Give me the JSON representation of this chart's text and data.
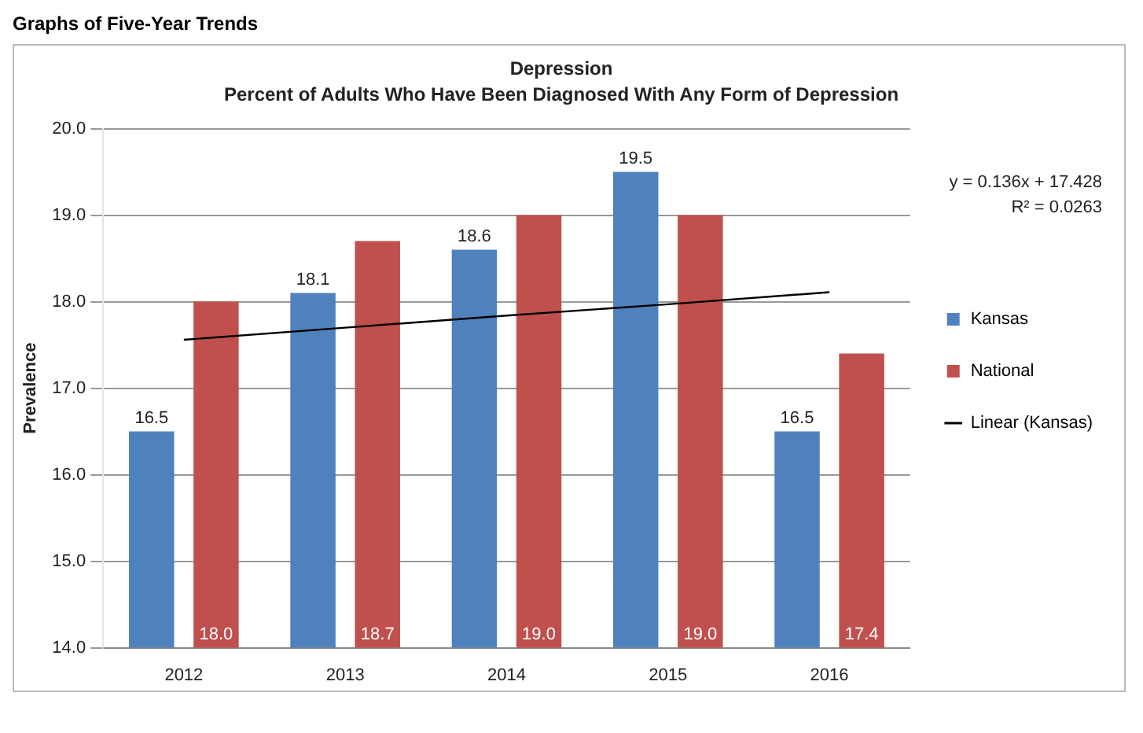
{
  "chart_data": {
    "type": "bar",
    "title": "Depression",
    "subtitle": "Percent of Adults Who Have Been Diagnosed With Any Form of Depression",
    "ylabel": "Prevalence",
    "categories": [
      "2012",
      "2013",
      "2014",
      "2015",
      "2016"
    ],
    "series": [
      {
        "name": "Kansas",
        "color": "#4f81bd",
        "values": [
          16.5,
          18.1,
          18.6,
          19.5,
          16.5
        ],
        "value_labels": [
          "16.5",
          "18.1",
          "18.6",
          "19.5",
          "16.5"
        ]
      },
      {
        "name": "National",
        "color": "#c0504d",
        "values": [
          18.0,
          18.7,
          19.0,
          19.0,
          17.4
        ],
        "value_labels": [
          "18.0",
          "18.7",
          "19.0",
          "19.0",
          "17.4"
        ]
      },
      {
        "name": "Linear (Kansas)",
        "type": "line",
        "color": "#000000",
        "values": [
          17.56,
          17.7,
          17.84,
          17.97,
          18.11
        ]
      }
    ],
    "ylim": [
      14,
      20
    ],
    "yticks": [
      {
        "value": 14,
        "label": "14.0"
      },
      {
        "value": 15,
        "label": "15.0"
      },
      {
        "value": 16,
        "label": "16.0"
      },
      {
        "value": 17,
        "label": "17.0"
      },
      {
        "value": 18,
        "label": "18.0"
      },
      {
        "value": 19,
        "label": "19.0"
      },
      {
        "value": 20,
        "label": "20.0"
      }
    ],
    "grid": "y",
    "legend": "right",
    "marker": "none",
    "line_style": "solid",
    "annotations": [
      "Graphs of Five-Year Trends",
      "y = 0.136x + 17.428",
      "R² = 0.0263"
    ]
  }
}
